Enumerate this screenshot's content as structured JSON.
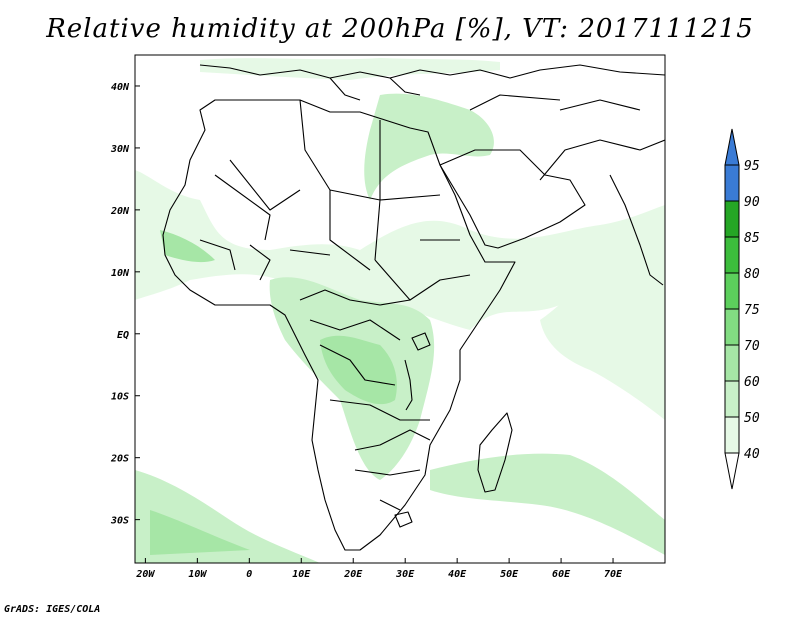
{
  "title": "Relative humidity at 200hPa [%], VT: 2017111215",
  "credit": "GrADS: IGES/COLA",
  "map": {
    "lon_range": [
      -22,
      80
    ],
    "lat_range": [
      -37,
      45
    ],
    "lon_ticks": [
      {
        "value": -20,
        "label": "20W"
      },
      {
        "value": -10,
        "label": "10W"
      },
      {
        "value": 0,
        "label": "0"
      },
      {
        "value": 10,
        "label": "10E"
      },
      {
        "value": 20,
        "label": "20E"
      },
      {
        "value": 30,
        "label": "30E"
      },
      {
        "value": 40,
        "label": "40E"
      },
      {
        "value": 50,
        "label": "50E"
      },
      {
        "value": 60,
        "label": "60E"
      },
      {
        "value": 70,
        "label": "70E"
      }
    ],
    "lat_ticks": [
      {
        "value": 40,
        "label": "40N"
      },
      {
        "value": 30,
        "label": "30N"
      },
      {
        "value": 20,
        "label": "20N"
      },
      {
        "value": 10,
        "label": "10N"
      },
      {
        "value": 0,
        "label": "EQ"
      },
      {
        "value": -10,
        "label": "10S"
      },
      {
        "value": -20,
        "label": "20S"
      },
      {
        "value": -30,
        "label": "30S"
      }
    ]
  },
  "colorbar": {
    "levels": [
      "40",
      "50",
      "60",
      "70",
      "75",
      "80",
      "85",
      "90",
      "95"
    ],
    "colors": [
      "#ffffff",
      "#e6f9e6",
      "#c8f0c8",
      "#a6e6a6",
      "#82dc82",
      "#5ccf5c",
      "#3cbd3c",
      "#25a625",
      "#3a7bd5"
    ],
    "over_color": "#3a7bd5"
  }
}
